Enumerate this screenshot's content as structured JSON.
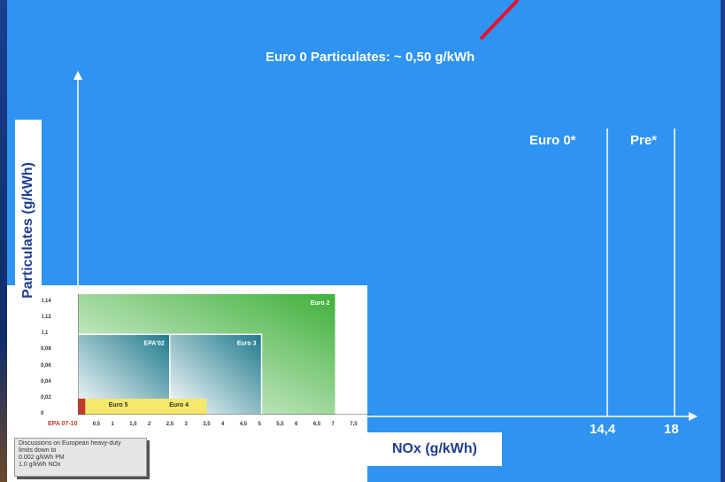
{
  "chart_data": [
    {
      "type": "bar",
      "xlabel": "NOx (g/kWh)",
      "ylabel": "Particulates (g/kWh)",
      "annotation": "Euro 0 Particulates: ~ 0,50 g/kWh",
      "x_ticks": [
        "14,4",
        "18"
      ],
      "categories": [
        "Euro 0*",
        "Pre*"
      ],
      "nox_limits": [
        14.4,
        18
      ],
      "particulates": [
        0.5,
        null
      ]
    },
    {
      "type": "bar",
      "y_ticks": [
        "0,14",
        "0,12",
        "0,1",
        "0,08",
        "0,06",
        "0,04",
        "0,02",
        "0"
      ],
      "x_ticks": [
        "0,5",
        "1",
        "1,5",
        "2",
        "2,5",
        "3",
        "3,5",
        "4",
        "4,5",
        "5",
        "5,5",
        "6",
        "6,5",
        "7",
        "7,5"
      ],
      "xlim": [
        0,
        8
      ],
      "ylim": [
        0,
        0.15
      ],
      "boxes": [
        {
          "name": "Euro 2",
          "nox": [
            0,
            7
          ],
          "pm": [
            0,
            0.15
          ],
          "color": "#3fb03a"
        },
        {
          "name": "EPA'02",
          "nox": [
            0,
            2.5
          ],
          "pm": [
            0,
            0.1
          ],
          "color": "#1f7a8c"
        },
        {
          "name": "Euro 3",
          "nox": [
            2.5,
            5
          ],
          "pm": [
            0,
            0.1
          ],
          "color": "#1f7a8c"
        },
        {
          "name": "Euro 5",
          "nox": [
            0.2,
            2
          ],
          "pm": [
            0,
            0.02
          ],
          "color": "#f5e86a"
        },
        {
          "name": "Euro 4",
          "nox": [
            2,
            3.5
          ],
          "pm": [
            0,
            0.02
          ],
          "color": "#f5e86a"
        },
        {
          "name": "EPA 07-10",
          "nox": [
            0,
            0.2
          ],
          "pm": [
            0,
            0.02
          ],
          "color": "#c0392b"
        }
      ],
      "note": "Discussions on European heavy-duty\nlimits down to\n0.002 g/kWh PM\n1.0 g/kWh NOx"
    }
  ],
  "colors": {
    "background": "#2f93f2",
    "frame": "#1a3f8c",
    "axis": "#ffffff",
    "arrow": "#e8112d",
    "label_text": "#1f3f8f"
  }
}
